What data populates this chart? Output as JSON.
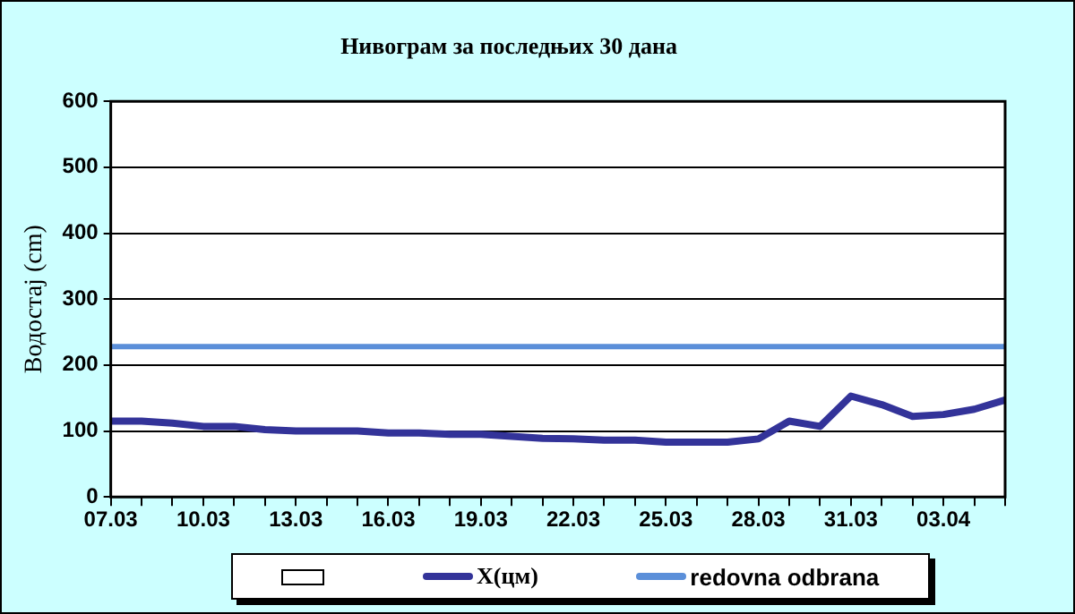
{
  "chart_data": {
    "type": "line",
    "title": "Нивограм за последњих 30 дана",
    "ylabel": "Водостај (cm)",
    "categories": [
      "07.03",
      null,
      null,
      "10.03",
      null,
      null,
      "13.03",
      null,
      null,
      "16.03",
      null,
      null,
      "19.03",
      null,
      null,
      "22.03",
      null,
      null,
      "25.03",
      null,
      null,
      "28.03",
      null,
      null,
      "31.03",
      null,
      null,
      "03.04",
      null,
      null
    ],
    "series": [
      {
        "name": "X(цм)",
        "color": "#333399",
        "values": [
          115,
          115,
          112,
          107,
          107,
          102,
          100,
          100,
          100,
          97,
          97,
          95,
          95,
          92,
          89,
          88,
          86,
          86,
          83,
          83,
          83,
          88,
          115,
          107,
          153,
          140,
          122,
          125,
          133,
          147
        ]
      }
    ],
    "ref_lines": [
      {
        "axis": "y",
        "value": 228,
        "label": "redovna odbrana",
        "color": "#5b8fd9"
      }
    ],
    "ylim": [
      0,
      600
    ],
    "yticks": [
      0,
      100,
      200,
      300,
      400,
      500,
      600
    ],
    "grid": "y",
    "legend": "bottom",
    "marker": "none",
    "line_style": "solid"
  }
}
